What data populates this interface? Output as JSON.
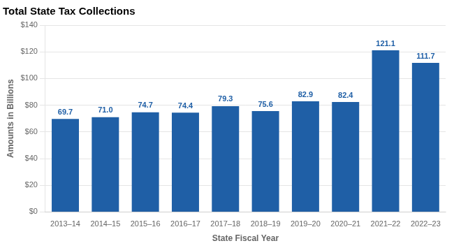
{
  "chart_data": {
    "type": "bar",
    "title": "Total State Tax Collections",
    "categories": [
      "2013–14",
      "2014–15",
      "2015–16",
      "2016–17",
      "2017–18",
      "2018–19",
      "2019–20",
      "2020–21",
      "2021–22",
      "2022–23"
    ],
    "values": [
      69.7,
      71.0,
      74.7,
      74.4,
      79.3,
      75.6,
      82.9,
      82.4,
      121.1,
      111.7
    ],
    "value_labels": [
      "69.7",
      "71.0",
      "74.7",
      "74.4",
      "79.3",
      "75.6",
      "82.9",
      "82.4",
      "121.1",
      "111.7"
    ],
    "color": "#1F5FA6",
    "xlabel": "State Fiscal Year",
    "ylabel": "Amounts in Billions",
    "ylim": [
      0,
      140
    ],
    "yticks": [
      {
        "value": 0,
        "label": "$0"
      },
      {
        "value": 20,
        "label": "$20"
      },
      {
        "value": 40,
        "label": "$40"
      },
      {
        "value": 60,
        "label": "$60"
      },
      {
        "value": 80,
        "label": "$80"
      },
      {
        "value": 100,
        "label": "$100"
      },
      {
        "value": 120,
        "label": "$120"
      },
      {
        "value": 140,
        "label": "$140"
      }
    ],
    "grid": true,
    "data_labels": true
  }
}
